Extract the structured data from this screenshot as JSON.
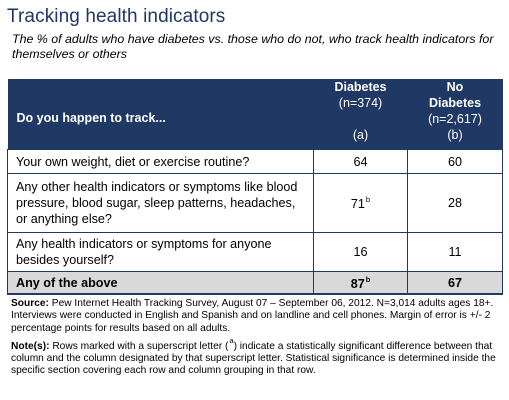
{
  "title": "Tracking health indicators",
  "subtitle": "The % of adults who have diabetes vs. those who do not, who track health indicators for themselves or others",
  "chart_data": {
    "type": "table",
    "question_header": "Do you happen to track...",
    "columns": [
      {
        "group": "Diabetes",
        "n": "(n=374)",
        "letter": "(a)"
      },
      {
        "group": "No Diabetes",
        "n": "(n=2,617)",
        "letter": "(b)"
      }
    ],
    "rows": [
      {
        "label": "Your own weight, diet or exercise routine?",
        "a": 64,
        "a_sup": "",
        "b": 60,
        "b_sup": ""
      },
      {
        "label": "Any other health indicators or symptoms like blood pressure, blood sugar, sleep patterns, headaches, or anything else?",
        "a": 71,
        "a_sup": "b",
        "b": 28,
        "b_sup": ""
      },
      {
        "label": "Any health indicators or symptoms for anyone besides yourself?",
        "a": 16,
        "a_sup": "",
        "b": 11,
        "b_sup": ""
      },
      {
        "label": "Any of the above",
        "a": 87,
        "a_sup": "b",
        "b": 67,
        "b_sup": ""
      }
    ]
  },
  "notes": {
    "source_label": "Source:",
    "source_text": " Pew Internet Health Tracking Survey, August 07 – September 06, 2012. N=3,014 adults ages 18+. Interviews were conducted in English and Spanish and on landline and cell phones. Margin of error is +/- 2 percentage points for results based on all adults.",
    "note_label": "Note(s):",
    "note_text_1": " Rows marked with a superscript letter (",
    "note_sup": "a",
    "note_text_2": ") indicate a statistically significant difference between that column and the column designated by that superscript letter. Statistical significance is determined inside the specific section covering each row and column grouping in that row."
  },
  "colors": {
    "header": "#1f3864",
    "highlight_row": "#d9d9d9",
    "title": "#1f3864"
  }
}
